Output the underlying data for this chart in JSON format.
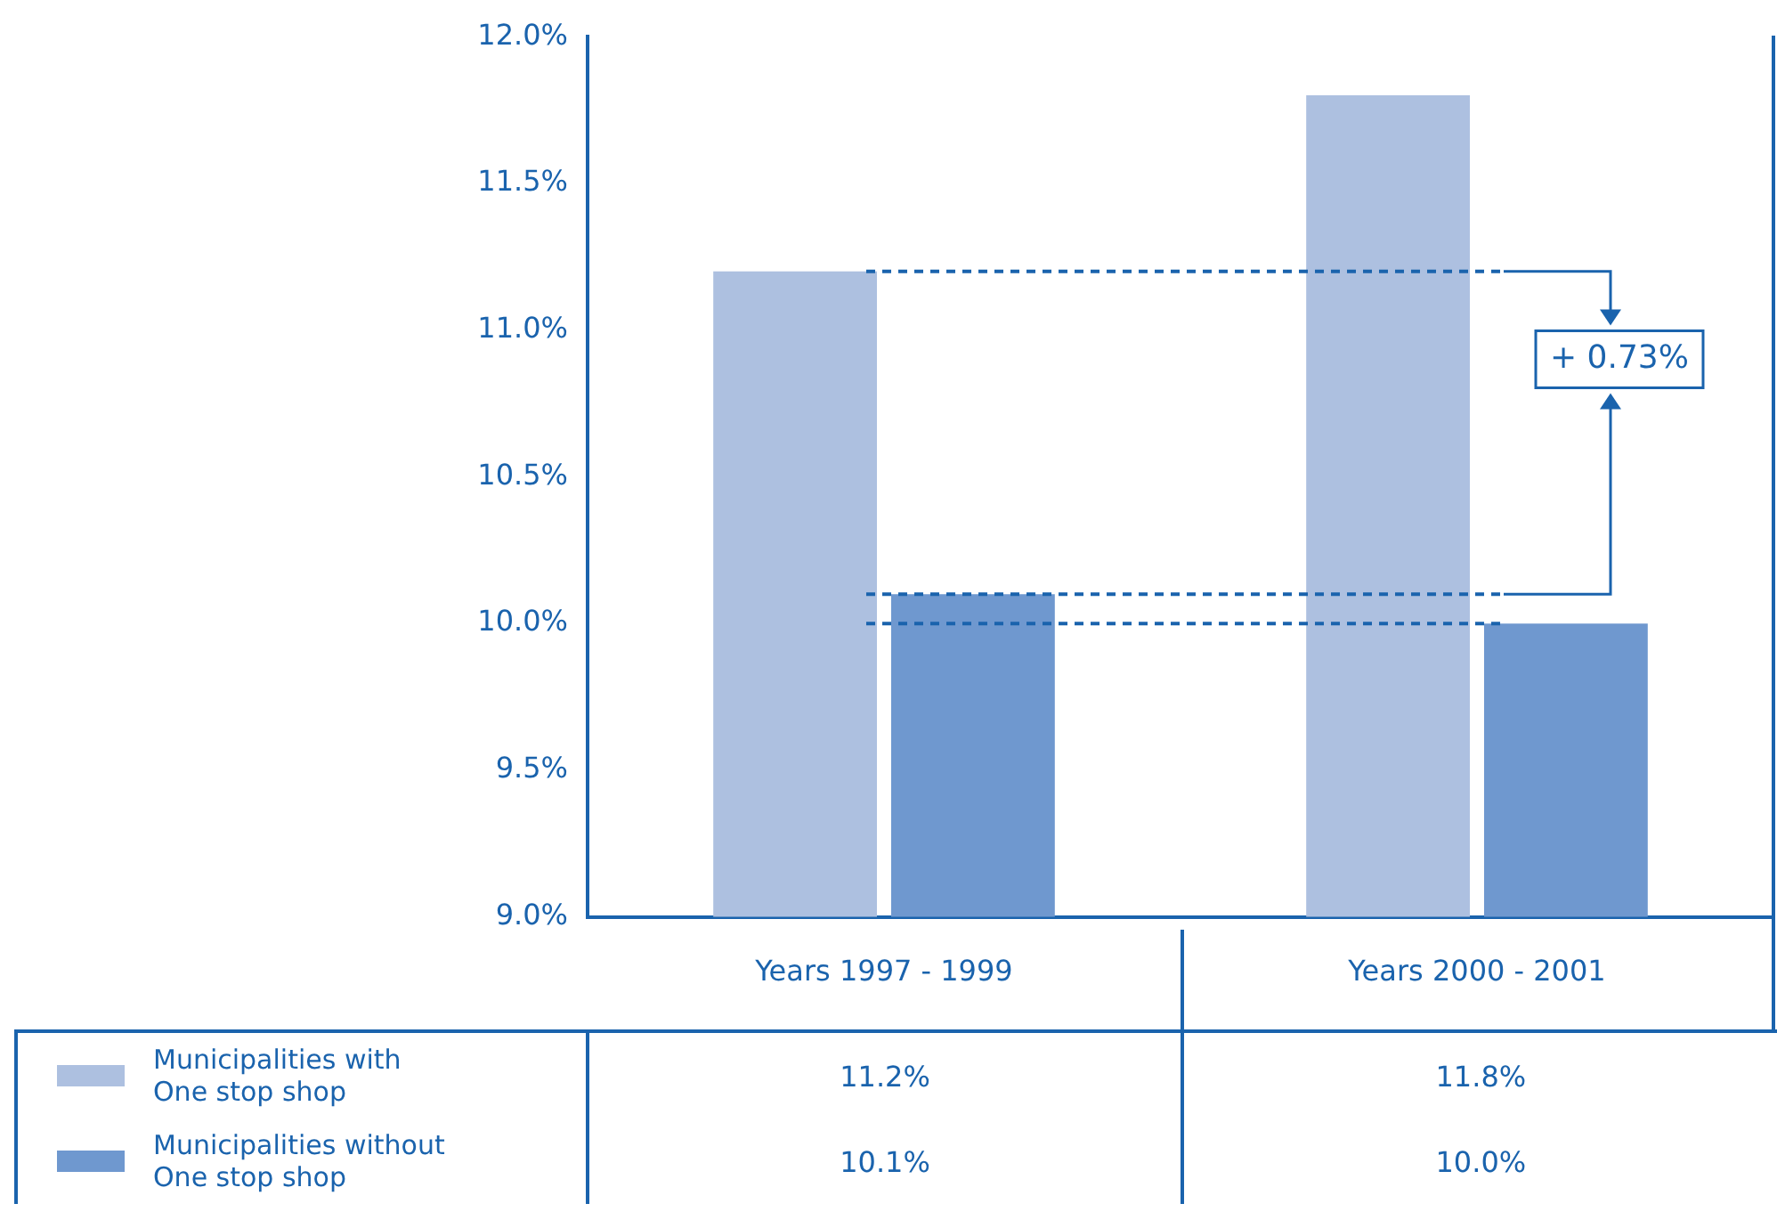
{
  "chart_data": {
    "type": "bar",
    "categories": [
      "Years 1997 - 1999",
      "Years 2000 - 2001"
    ],
    "series": [
      {
        "name": "Municipalities with One stop shop",
        "color": "#adc0e0",
        "values": [
          11.2,
          11.8
        ],
        "value_labels": [
          "11.2%",
          "11.8%"
        ]
      },
      {
        "name": "Municipalities without One stop shop",
        "color": "#6f98cf",
        "values": [
          10.1,
          10.0
        ],
        "value_labels": [
          "10.1%",
          "10.0%"
        ]
      }
    ],
    "ylim": [
      9,
      12
    ],
    "yticks": [
      {
        "value": 9,
        "label": "9.0%"
      },
      {
        "value": 9.5,
        "label": "9.5%"
      },
      {
        "value": 10,
        "label": "10.0%"
      },
      {
        "value": 10.5,
        "label": "10.5%"
      },
      {
        "value": 11,
        "label": "11.0%"
      },
      {
        "value": 11.5,
        "label": "11.5%"
      },
      {
        "value": 12,
        "label": "12.0%"
      }
    ],
    "ref_lines": [
      {
        "axis": "y",
        "value": 11.2,
        "line_style": "dashed",
        "color": "#1a63ad"
      },
      {
        "axis": "y",
        "value": 10.1,
        "line_style": "dashed",
        "color": "#1a63ad"
      },
      {
        "axis": "y",
        "value": 10.0,
        "line_style": "dashed",
        "color": "#1a63ad"
      }
    ],
    "annotations": [
      {
        "text": "+ 0.73%",
        "x": "Years 2000 - 2001",
        "y": 10.9
      }
    ],
    "legend": "bottom"
  }
}
